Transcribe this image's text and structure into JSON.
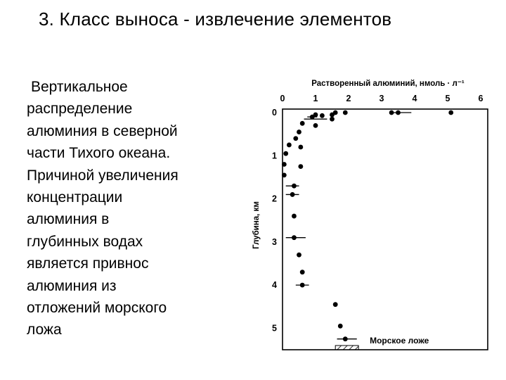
{
  "slide": {
    "title": "3. Класс выноса - извлечение элементов",
    "body_lines": [
      "Вертикальное",
      "распределение",
      "алюминия в северной",
      "части Тихого океана.",
      "Причиной увеличения",
      "концентрации",
      "алюминия в",
      "глубинных водах",
      "является привнос",
      "алюминия из",
      "отложений морского",
      "ложа"
    ]
  },
  "chart_data": {
    "type": "scatter",
    "title": "",
    "xlabel": "Растворенный алюминий, нмоль · л⁻¹",
    "ylabel": "Глубина, км",
    "x_axis_position": "top",
    "y_axis_inverted": true,
    "xlim": [
      0,
      6
    ],
    "ylim": [
      0,
      5.5
    ],
    "x_ticks": [
      "0",
      "1",
      "2",
      "3",
      "4",
      "5",
      "6"
    ],
    "y_ticks": [
      "0",
      "1",
      "2",
      "3",
      "4",
      "5"
    ],
    "grid": false,
    "annotation": "Морское ложе",
    "seafloor_x_range": [
      1.6,
      2.3
    ],
    "points": [
      {
        "x": 5.1,
        "y": 0.0
      },
      {
        "x": 3.5,
        "y": 0.0
      },
      {
        "x": 3.3,
        "y": 0.0
      },
      {
        "x": 1.9,
        "y": 0.0
      },
      {
        "x": 1.6,
        "y": 0.0
      },
      {
        "x": 1.5,
        "y": 0.05
      },
      {
        "x": 1.2,
        "y": 0.07
      },
      {
        "x": 1.0,
        "y": 0.05
      },
      {
        "x": 0.9,
        "y": 0.1
      },
      {
        "x": 1.5,
        "y": 0.15
      },
      {
        "x": 1.0,
        "y": 0.3
      },
      {
        "x": 0.6,
        "y": 0.25
      },
      {
        "x": 0.5,
        "y": 0.45
      },
      {
        "x": 0.4,
        "y": 0.6
      },
      {
        "x": 0.55,
        "y": 0.8
      },
      {
        "x": 0.2,
        "y": 0.75
      },
      {
        "x": 0.1,
        "y": 0.95
      },
      {
        "x": 0.05,
        "y": 1.2
      },
      {
        "x": 0.55,
        "y": 1.25
      },
      {
        "x": 0.05,
        "y": 1.45
      },
      {
        "x": 0.35,
        "y": 1.7
      },
      {
        "x": 0.3,
        "y": 1.9
      },
      {
        "x": 0.35,
        "y": 2.4
      },
      {
        "x": 0.35,
        "y": 2.9
      },
      {
        "x": 0.5,
        "y": 3.3
      },
      {
        "x": 0.6,
        "y": 3.7
      },
      {
        "x": 0.6,
        "y": 4.0
      },
      {
        "x": 1.6,
        "y": 4.45
      },
      {
        "x": 1.75,
        "y": 4.95
      },
      {
        "x": 1.9,
        "y": 5.25
      }
    ],
    "error_bars": [
      {
        "x": 1.0,
        "y": 0.15,
        "dx": 0.35
      },
      {
        "x": 0.9,
        "y": 0.1,
        "dx": 0.15
      },
      {
        "x": 3.6,
        "y": 0.0,
        "dx": 0.3
      },
      {
        "x": 0.3,
        "y": 1.7,
        "dx": 0.2
      },
      {
        "x": 0.3,
        "y": 1.9,
        "dx": 0.2
      },
      {
        "x": 0.4,
        "y": 2.9,
        "dx": 0.3
      },
      {
        "x": 0.6,
        "y": 4.0,
        "dx": 0.2
      },
      {
        "x": 1.95,
        "y": 5.25,
        "dx": 0.3
      }
    ]
  }
}
